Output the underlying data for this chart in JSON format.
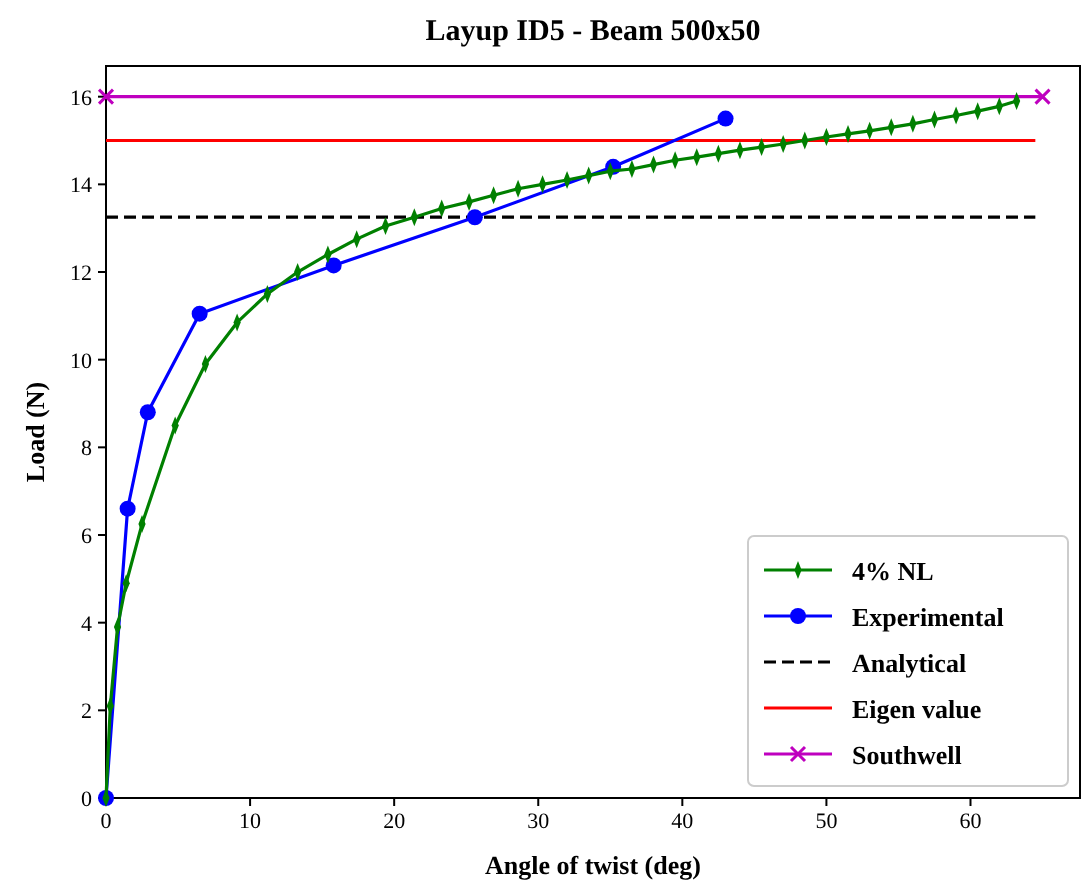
{
  "chart_data": {
    "type": "line",
    "title": "Layup ID5 - Beam 500x50",
    "xlabel": "Angle of twist (deg)",
    "ylabel": "Load (N)",
    "xlim": [
      0,
      67.6
    ],
    "ylim": [
      0,
      16.7
    ],
    "xticks": [
      0,
      10,
      20,
      30,
      40,
      50,
      60
    ],
    "yticks": [
      0,
      2,
      4,
      6,
      8,
      10,
      12,
      14,
      16
    ],
    "grid": false,
    "legend": "bottom right",
    "series": [
      {
        "name": "4% NL",
        "color": "#008000",
        "marker": "diamond",
        "line_style": "solid",
        "x": [
          0,
          0.3,
          0.8,
          1.4,
          2.5,
          4.8,
          6.9,
          9.1,
          11.2,
          13.3,
          15.4,
          17.4,
          19.4,
          21.4,
          23.3,
          25.2,
          26.9,
          28.6,
          30.3,
          32,
          33.5,
          35,
          36.5,
          38,
          39.5,
          41,
          42.5,
          44,
          45.5,
          47,
          48.5,
          50,
          51.5,
          53,
          54.5,
          56,
          57.5,
          59,
          60.5,
          62,
          63.2
        ],
        "values": [
          0,
          2.1,
          3.9,
          4.9,
          6.25,
          8.5,
          9.9,
          10.85,
          11.5,
          12,
          12.4,
          12.75,
          13.05,
          13.25,
          13.45,
          13.6,
          13.75,
          13.9,
          14,
          14.1,
          14.2,
          14.3,
          14.35,
          14.45,
          14.55,
          14.62,
          14.7,
          14.78,
          14.85,
          14.92,
          15,
          15.08,
          15.15,
          15.22,
          15.3,
          15.38,
          15.48,
          15.57,
          15.67,
          15.78,
          15.9
        ]
      },
      {
        "name": "Experimental",
        "color": "#0000ff",
        "marker": "circle",
        "line_style": "solid",
        "x": [
          0,
          1.5,
          2.9,
          6.5,
          15.8,
          25.6,
          35.2,
          43
        ],
        "values": [
          0,
          6.6,
          8.8,
          11.05,
          12.15,
          13.25,
          14.4,
          15.5
        ]
      },
      {
        "name": "Analytical",
        "color": "#000000",
        "marker": "none",
        "line_style": "dashed",
        "x": [
          0,
          64.5
        ],
        "values": [
          13.25,
          13.25
        ]
      },
      {
        "name": "Eigen value",
        "color": "#ff0000",
        "marker": "none",
        "line_style": "solid",
        "x": [
          0,
          64.5
        ],
        "values": [
          15,
          15
        ]
      },
      {
        "name": "Southwell",
        "color": "#bf00bf",
        "marker": "cross",
        "line_style": "solid",
        "x": [
          0,
          65
        ],
        "values": [
          16,
          16
        ]
      }
    ]
  }
}
